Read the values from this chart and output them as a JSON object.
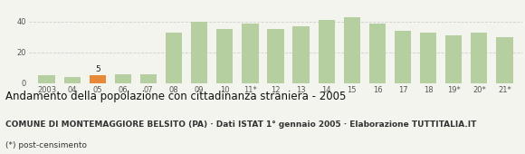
{
  "categories": [
    "2003",
    "04",
    "05",
    "06",
    "07",
    "08",
    "09",
    "10",
    "11*",
    "12",
    "13",
    "14",
    "15",
    "16",
    "17",
    "18",
    "19*",
    "20*",
    "21*"
  ],
  "values": [
    5,
    4,
    5,
    6,
    6,
    33,
    40,
    35,
    39,
    35,
    37,
    41,
    43,
    39,
    34,
    33,
    31,
    33,
    30
  ],
  "bar_colors": [
    "#b5cfa0",
    "#b5cfa0",
    "#e8893a",
    "#b5cfa0",
    "#b5cfa0",
    "#b5cfa0",
    "#b5cfa0",
    "#b5cfa0",
    "#b5cfa0",
    "#b5cfa0",
    "#b5cfa0",
    "#b5cfa0",
    "#b5cfa0",
    "#b5cfa0",
    "#b5cfa0",
    "#b5cfa0",
    "#b5cfa0",
    "#b5cfa0",
    "#b5cfa0"
  ],
  "highlight_index": 2,
  "highlight_label": "5",
  "ylim": [
    0,
    50
  ],
  "yticks": [
    0,
    20,
    40
  ],
  "title": "Andamento della popolazione con cittadinanza straniera - 2005",
  "subtitle": "COMUNE DI MONTEMAGGIORE BELSITO (PA) · Dati ISTAT 1° gennaio 2005 · Elaborazione TUTTITALIA.IT",
  "footnote": "(*) post-censimento",
  "bg_color": "#f4f4ee",
  "grid_color": "#d0d0d0",
  "title_fontsize": 8.5,
  "subtitle_fontsize": 6.5,
  "footnote_fontsize": 6.5,
  "tick_fontsize": 6.0
}
